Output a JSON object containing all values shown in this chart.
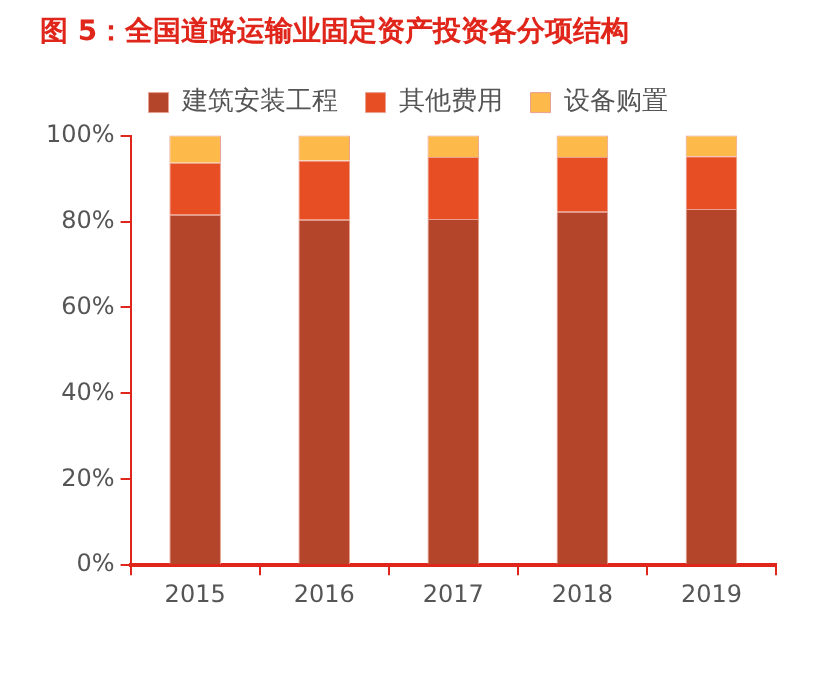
{
  "chart_data": {
    "type": "bar",
    "title": "图 5：全国道路运输业固定资产投资各分项结构",
    "categories": [
      "2015",
      "2016",
      "2017",
      "2018",
      "2019"
    ],
    "stacked": true,
    "series": [
      {
        "name": "建筑安装工程",
        "color": "#b5452a",
        "values": [
          81.6,
          80.4,
          80.6,
          82.3,
          82.9
        ]
      },
      {
        "name": "其他费用",
        "color": "#e84e24",
        "values": [
          12.1,
          13.8,
          14.4,
          12.7,
          12.3
        ]
      },
      {
        "name": "设备购置",
        "color": "#fdb94a",
        "values": [
          6.3,
          5.8,
          5.0,
          5.0,
          4.8
        ]
      }
    ],
    "ylim": [
      0,
      100
    ],
    "yticks": [
      {
        "value": 0,
        "label": "0%"
      },
      {
        "value": 20,
        "label": "20%"
      },
      {
        "value": 40,
        "label": "40%"
      },
      {
        "value": 60,
        "label": "60%"
      },
      {
        "value": 80,
        "label": "80%"
      },
      {
        "value": 100,
        "label": "100%"
      }
    ],
    "grid": false,
    "legend": "top"
  }
}
